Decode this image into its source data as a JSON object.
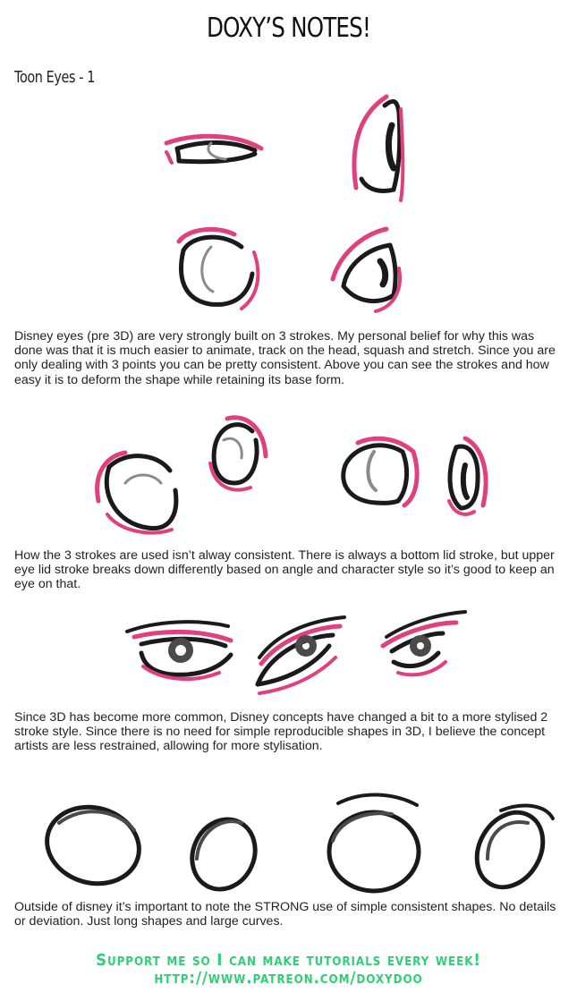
{
  "header": {
    "title": "DOXY’S NOTES!",
    "subtitle": "Toon Eyes - 1"
  },
  "paragraphs": [
    "Disney eyes (pre 3D) are very strongly built on 3 strokes. My personal belief for why this was done was that it is much easier to animate, track on the head, squash and stretch. Since you are only dealing with 3 points you can be pretty consistent. Above you can see the strokes and how easy it is to deform the shape while retaining its base form.",
    "How the 3 strokes are used isn’t alway consistent. There is always a bottom lid stroke, but upper eye lid stroke breaks down differently based on angle and character style so it’s good to keep an eye on that.",
    "Since 3D has become more common, Disney concepts have changed a bit to a more stylised 2 stroke style. Since there is no need for simple reproducible shapes in 3D, I believe the concept artists are less restrained, allowing for more stylisation.",
    "Outside of disney it’s important to note the STRONG use of simple consistent shapes. No details or deviation. Just long shapes and large curves."
  ],
  "footer": {
    "line1": "Support me so I can make tutorials every week!",
    "line2": "http://www.patreon.com/doxydoo"
  },
  "colors": {
    "accent_stroke": "#e0407e",
    "ink": "#1a1a1a",
    "footer_text": "#2fcf73"
  }
}
